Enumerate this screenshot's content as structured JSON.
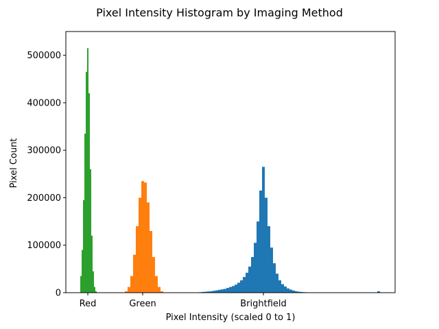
{
  "chart_data": {
    "type": "bar",
    "title": "Pixel Intensity Histogram by Imaging Method",
    "xlabel": "Pixel Intensity (scaled 0 to 1)",
    "ylabel": "Pixel Count",
    "ylim": [
      0,
      550000
    ],
    "xlim": [
      0,
      1.2
    ],
    "yticks": [
      0,
      100000,
      200000,
      300000,
      400000,
      500000
    ],
    "xticks": [
      {
        "value": 0.08,
        "label": "Red"
      },
      {
        "value": 0.28,
        "label": "Green"
      },
      {
        "value": 0.72,
        "label": "Brightfield"
      }
    ],
    "grid": false,
    "legend": "none",
    "series": [
      {
        "color": "#1f77b4",
        "bins": [
          [
            0.49,
            1000
          ],
          [
            0.5,
            1500
          ],
          [
            0.51,
            2000
          ],
          [
            0.52,
            2500
          ],
          [
            0.53,
            3000
          ],
          [
            0.54,
            4000
          ],
          [
            0.55,
            5000
          ],
          [
            0.56,
            6000
          ],
          [
            0.57,
            7000
          ],
          [
            0.58,
            8000
          ],
          [
            0.59,
            10000
          ],
          [
            0.6,
            12000
          ],
          [
            0.61,
            14000
          ],
          [
            0.62,
            17000
          ],
          [
            0.63,
            21000
          ],
          [
            0.64,
            26000
          ],
          [
            0.65,
            33000
          ],
          [
            0.66,
            42000
          ],
          [
            0.67,
            55000
          ],
          [
            0.68,
            75000
          ],
          [
            0.69,
            105000
          ],
          [
            0.7,
            150000
          ],
          [
            0.71,
            215000
          ],
          [
            0.72,
            265000
          ],
          [
            0.73,
            200000
          ],
          [
            0.74,
            140000
          ],
          [
            0.75,
            95000
          ],
          [
            0.76,
            62000
          ],
          [
            0.77,
            40000
          ],
          [
            0.78,
            26000
          ],
          [
            0.79,
            18000
          ],
          [
            0.8,
            13000
          ],
          [
            0.81,
            9000
          ],
          [
            0.82,
            6500
          ],
          [
            0.83,
            4500
          ],
          [
            0.84,
            3000
          ],
          [
            0.85,
            2000
          ],
          [
            0.86,
            1500
          ],
          [
            0.87,
            1000
          ],
          [
            1.14,
            3000
          ]
        ]
      },
      {
        "color": "#ff7f0e",
        "bins": [
          [
            0.22,
            3000
          ],
          [
            0.23,
            12000
          ],
          [
            0.24,
            35000
          ],
          [
            0.25,
            80000
          ],
          [
            0.26,
            140000
          ],
          [
            0.27,
            200000
          ],
          [
            0.28,
            235000
          ],
          [
            0.29,
            232000
          ],
          [
            0.3,
            190000
          ],
          [
            0.31,
            130000
          ],
          [
            0.32,
            75000
          ],
          [
            0.33,
            35000
          ],
          [
            0.34,
            12000
          ],
          [
            0.35,
            3000
          ]
        ]
      },
      {
        "color": "#2ca02c",
        "bins": [
          [
            0.055,
            35000
          ],
          [
            0.06,
            90000
          ],
          [
            0.065,
            195000
          ],
          [
            0.07,
            335000
          ],
          [
            0.075,
            465000
          ],
          [
            0.08,
            515000
          ],
          [
            0.085,
            420000
          ],
          [
            0.09,
            260000
          ],
          [
            0.095,
            120000
          ],
          [
            0.1,
            45000
          ],
          [
            0.105,
            12000
          ],
          [
            0.11,
            3000
          ]
        ]
      }
    ]
  }
}
